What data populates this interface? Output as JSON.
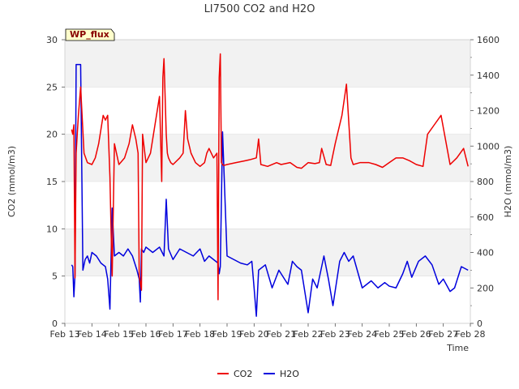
{
  "chart_data": {
    "type": "line",
    "title": "LI7500 CO2 and H2O",
    "badge": "WP_flux",
    "xlabel": "Time",
    "ylabel_left": "CO2 (mmol/m3)",
    "ylabel_right": "H2O (mmol/m3)",
    "x_ticks": [
      "Feb 13",
      "Feb 14",
      "Feb 15",
      "Feb 16",
      "Feb 17",
      "Feb 18",
      "Feb 19",
      "Feb 20",
      "Feb 21",
      "Feb 22",
      "Feb 23",
      "Feb 24",
      "Feb 25",
      "Feb 26",
      "Feb 27",
      "Feb 28"
    ],
    "xlim": [
      "Feb 13",
      "Feb 28"
    ],
    "ylim_left": [
      0,
      30
    ],
    "ylim_right": [
      0,
      1600
    ],
    "left_ticks": [
      0,
      5,
      10,
      15,
      20,
      25,
      30
    ],
    "right_ticks": [
      0,
      200,
      400,
      600,
      800,
      1000,
      1200,
      1400,
      1600
    ],
    "shaded_bands_left": [
      [
        5,
        10
      ],
      [
        15,
        20
      ],
      [
        25,
        30
      ]
    ],
    "legend_position": "bottom-center",
    "series": [
      {
        "name": "CO2",
        "axis": "left",
        "color": "#ee0000",
        "x": [
          "Feb 13 06:00",
          "Feb 13 07:00",
          "Feb 13 08:00",
          "Feb 13 09:00",
          "Feb 13 10:00",
          "Feb 13 12:00",
          "Feb 13 14:00",
          "Feb 13 17:00",
          "Feb 13 20:00",
          "Feb 14 00:00",
          "Feb 14 03:00",
          "Feb 14 06:00",
          "Feb 14 08:00",
          "Feb 14 10:00",
          "Feb 14 12:00",
          "Feb 14 14:00",
          "Feb 14 16:00",
          "Feb 14 17:00",
          "Feb 14 18:00",
          "Feb 14 20:00",
          "Feb 15 00:00",
          "Feb 15 05:00",
          "Feb 15 09:00",
          "Feb 15 12:00",
          "Feb 15 15:00",
          "Feb 15 17:00",
          "Feb 15 18:00",
          "Feb 15 20:00",
          "Feb 15 21:00",
          "Feb 16 00:00",
          "Feb 16 04:00",
          "Feb 16 08:00",
          "Feb 16 12:00",
          "Feb 16 14:00",
          "Feb 16 15:00",
          "Feb 16 16:00",
          "Feb 16 18:00",
          "Feb 16 19:00",
          "Feb 16 20:00",
          "Feb 16 22:00",
          "Feb 17 00:00",
          "Feb 17 06:00",
          "Feb 17 09:00",
          "Feb 17 11:00",
          "Feb 17 13:00",
          "Feb 17 16:00",
          "Feb 17 20:00",
          "Feb 18 00:00",
          "Feb 18 04:00",
          "Feb 18 06:00",
          "Feb 18 08:00",
          "Feb 18 12:00",
          "Feb 18 15:00",
          "Feb 18 16:00",
          "Feb 18 17:00",
          "Feb 18 18:00",
          "Feb 18 19:00",
          "Feb 18 20:00",
          "Feb 18 21:00",
          "Feb 19 00:00",
          "Feb 19 08:00",
          "Feb 19 16:00",
          "Feb 19 20:00",
          "Feb 20 02:00",
          "Feb 20 04:00",
          "Feb 20 06:00",
          "Feb 20 12:00",
          "Feb 20 20:00",
          "Feb 21 00:00",
          "Feb 21 08:00",
          "Feb 21 14:00",
          "Feb 21 18:00",
          "Feb 22 00:00",
          "Feb 22 06:00",
          "Feb 22 10:00",
          "Feb 22 12:00",
          "Feb 22 16:00",
          "Feb 22 20:00",
          "Feb 23 00:00",
          "Feb 23 06:00",
          "Feb 23 10:00",
          "Feb 23 14:00",
          "Feb 23 16:00",
          "Feb 23 22:00",
          "Feb 24 06:00",
          "Feb 24 12:00",
          "Feb 24 18:00",
          "Feb 25 00:00",
          "Feb 25 06:00",
          "Feb 25 12:00",
          "Feb 25 18:00",
          "Feb 26 00:00",
          "Feb 26 06:00",
          "Feb 26 10:00",
          "Feb 26 16:00",
          "Feb 26 22:00",
          "Feb 27 06:00",
          "Feb 27 12:00",
          "Feb 27 18:00",
          "Feb 27 22:00"
        ],
        "values": [
          20.5,
          20.0,
          21.0,
          4.8,
          18.0,
          22.0,
          25.0,
          18.0,
          17.0,
          16.8,
          17.5,
          19.0,
          20.5,
          22.0,
          21.5,
          22.0,
          15.5,
          10.0,
          5.0,
          19.0,
          16.8,
          17.5,
          19.0,
          21.0,
          19.5,
          18.0,
          5.0,
          3.5,
          20.0,
          17.0,
          18.0,
          21.0,
          24.0,
          15.0,
          26.0,
          28.0,
          20.0,
          18.0,
          17.5,
          17.0,
          16.8,
          17.5,
          18.0,
          22.5,
          19.5,
          18.0,
          17.0,
          16.6,
          17.0,
          18.0,
          18.5,
          17.5,
          18.0,
          2.5,
          26.0,
          28.5,
          17.0,
          16.8,
          16.7,
          16.8,
          17.0,
          17.2,
          17.3,
          17.5,
          19.5,
          16.8,
          16.6,
          17.0,
          16.8,
          17.0,
          16.5,
          16.4,
          17.0,
          16.9,
          17.0,
          18.5,
          16.8,
          16.7,
          19.0,
          22.0,
          25.3,
          17.5,
          16.8,
          17.0,
          17.0,
          16.8,
          16.5,
          17.0,
          17.5,
          17.5,
          17.2,
          16.8,
          16.6,
          20.0,
          21.0,
          22.0,
          16.8,
          17.5,
          18.5,
          16.6
        ]
      },
      {
        "name": "H2O",
        "axis": "right",
        "color": "#0000dd",
        "x": [
          "Feb 13 06:00",
          "Feb 13 07:00",
          "Feb 13 08:00",
          "Feb 13 09:00",
          "Feb 13 10:00",
          "Feb 13 12:00",
          "Feb 13 14:00",
          "Feb 13 16:00",
          "Feb 13 18:00",
          "Feb 13 20:00",
          "Feb 13 22:00",
          "Feb 14 00:00",
          "Feb 14 04:00",
          "Feb 14 08:00",
          "Feb 14 12:00",
          "Feb 14 14:00",
          "Feb 14 16:00",
          "Feb 14 18:00",
          "Feb 14 20:00",
          "Feb 15 00:00",
          "Feb 15 04:00",
          "Feb 15 08:00",
          "Feb 15 12:00",
          "Feb 15 16:00",
          "Feb 15 18:00",
          "Feb 15 19:00",
          "Feb 15 20:00",
          "Feb 15 22:00",
          "Feb 16 00:00",
          "Feb 16 06:00",
          "Feb 16 12:00",
          "Feb 16 16:00",
          "Feb 16 18:00",
          "Feb 16 20:00",
          "Feb 17 00:00",
          "Feb 17 06:00",
          "Feb 17 12:00",
          "Feb 17 18:00",
          "Feb 18 00:00",
          "Feb 18 04:00",
          "Feb 18 08:00",
          "Feb 18 12:00",
          "Feb 18 16:00",
          "Feb 18 17:00",
          "Feb 18 18:00",
          "Feb 18 20:00",
          "Feb 19 00:00",
          "Feb 19 06:00",
          "Feb 19 12:00",
          "Feb 19 18:00",
          "Feb 19 22:00",
          "Feb 20 00:00",
          "Feb 20 02:00",
          "Feb 20 04:00",
          "Feb 20 10:00",
          "Feb 20 16:00",
          "Feb 20 22:00",
          "Feb 21 06:00",
          "Feb 21 10:00",
          "Feb 21 14:00",
          "Feb 21 18:00",
          "Feb 22 00:00",
          "Feb 22 04:00",
          "Feb 22 08:00",
          "Feb 22 14:00",
          "Feb 22 18:00",
          "Feb 22 22:00",
          "Feb 23 04:00",
          "Feb 23 08:00",
          "Feb 23 12:00",
          "Feb 23 16:00",
          "Feb 24 00:00",
          "Feb 24 08:00",
          "Feb 24 14:00",
          "Feb 24 20:00",
          "Feb 25 00:00",
          "Feb 25 06:00",
          "Feb 25 12:00",
          "Feb 25 16:00",
          "Feb 25 20:00",
          "Feb 26 02:00",
          "Feb 26 08:00",
          "Feb 26 14:00",
          "Feb 26 20:00",
          "Feb 27 00:00",
          "Feb 27 06:00",
          "Feb 27 10:00",
          "Feb 27 16:00",
          "Feb 27 22:00"
        ],
        "values": [
          330,
          320,
          150,
          280,
          1460,
          1460,
          1460,
          300,
          360,
          380,
          340,
          400,
          380,
          340,
          320,
          250,
          80,
          650,
          380,
          400,
          380,
          420,
          380,
          300,
          250,
          120,
          420,
          400,
          430,
          400,
          430,
          380,
          700,
          420,
          360,
          420,
          400,
          380,
          420,
          350,
          380,
          360,
          340,
          280,
          320,
          1080,
          380,
          360,
          340,
          330,
          350,
          200,
          40,
          300,
          330,
          200,
          300,
          220,
          350,
          320,
          300,
          60,
          250,
          200,
          380,
          250,
          100,
          350,
          400,
          350,
          380,
          200,
          240,
          200,
          230,
          210,
          200,
          280,
          350,
          260,
          350,
          380,
          330,
          220,
          250,
          180,
          200,
          320,
          300
        ]
      }
    ]
  }
}
